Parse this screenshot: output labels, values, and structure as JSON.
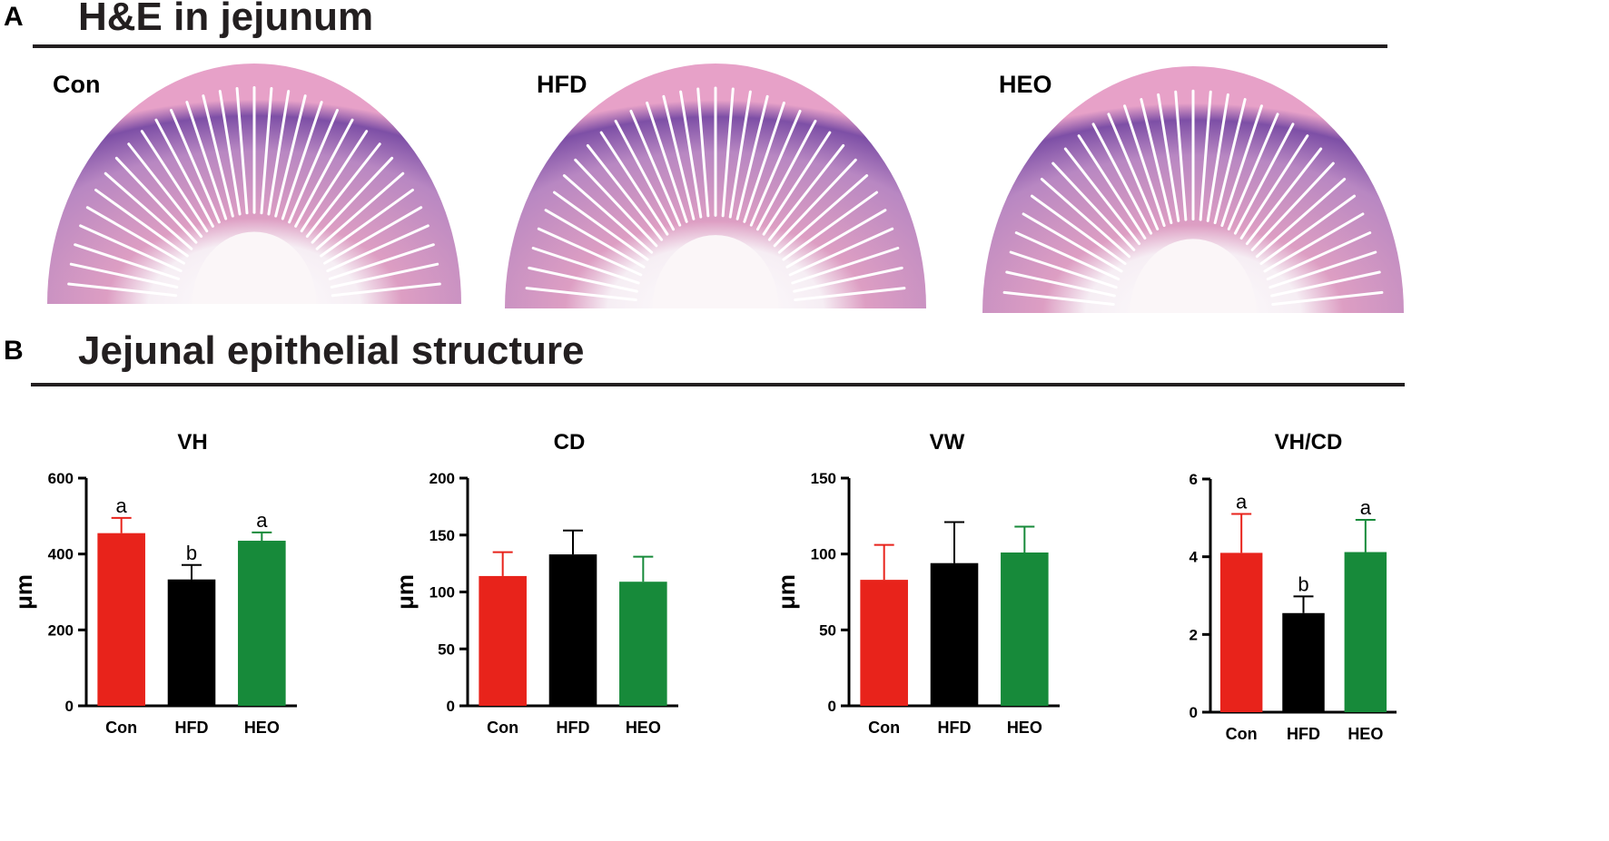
{
  "panel_a": {
    "letter": "A",
    "title": "H&E in jejunum",
    "images": [
      {
        "label": "Con"
      },
      {
        "label": "HFD"
      },
      {
        "label": "HEO"
      }
    ]
  },
  "panel_b": {
    "letter": "B",
    "title": "Jejunal epithelial structure"
  },
  "colors": {
    "Con": "#e8231b",
    "HFD": "#000000",
    "HEO": "#178a3a",
    "tissue_light": "#e9a3c6",
    "tissue_dark": "#7d4fa6"
  },
  "chart_data": [
    {
      "type": "bar",
      "title": "VH",
      "ylabel": "μm",
      "categories": [
        "Con",
        "HFD",
        "HEO"
      ],
      "values": [
        455,
        333,
        435
      ],
      "errors": [
        40,
        38,
        22
      ],
      "significance": [
        "a",
        "b",
        "a"
      ],
      "ylim": [
        0,
        600
      ],
      "yticks": [
        0,
        200,
        400,
        600
      ]
    },
    {
      "type": "bar",
      "title": "CD",
      "ylabel": "μm",
      "categories": [
        "Con",
        "HFD",
        "HEO"
      ],
      "values": [
        114,
        133,
        109
      ],
      "errors": [
        21,
        21,
        22
      ],
      "significance": [
        "",
        "",
        ""
      ],
      "ylim": [
        0,
        200
      ],
      "yticks": [
        0,
        50,
        100,
        150,
        200
      ]
    },
    {
      "type": "bar",
      "title": "VW",
      "ylabel": "μm",
      "categories": [
        "Con",
        "HFD",
        "HEO"
      ],
      "values": [
        83,
        94,
        101
      ],
      "errors": [
        23,
        27,
        17
      ],
      "significance": [
        "",
        "",
        ""
      ],
      "ylim": [
        0,
        150
      ],
      "yticks": [
        0,
        50,
        100,
        150
      ]
    },
    {
      "type": "bar",
      "title": "VH/CD",
      "ylabel": "",
      "categories": [
        "Con",
        "HFD",
        "HEO"
      ],
      "values": [
        4.1,
        2.55,
        4.12
      ],
      "errors": [
        1.0,
        0.43,
        0.83
      ],
      "significance": [
        "a",
        "b",
        "a"
      ],
      "ylim": [
        0,
        6
      ],
      "yticks": [
        0,
        2,
        4,
        6
      ]
    }
  ]
}
